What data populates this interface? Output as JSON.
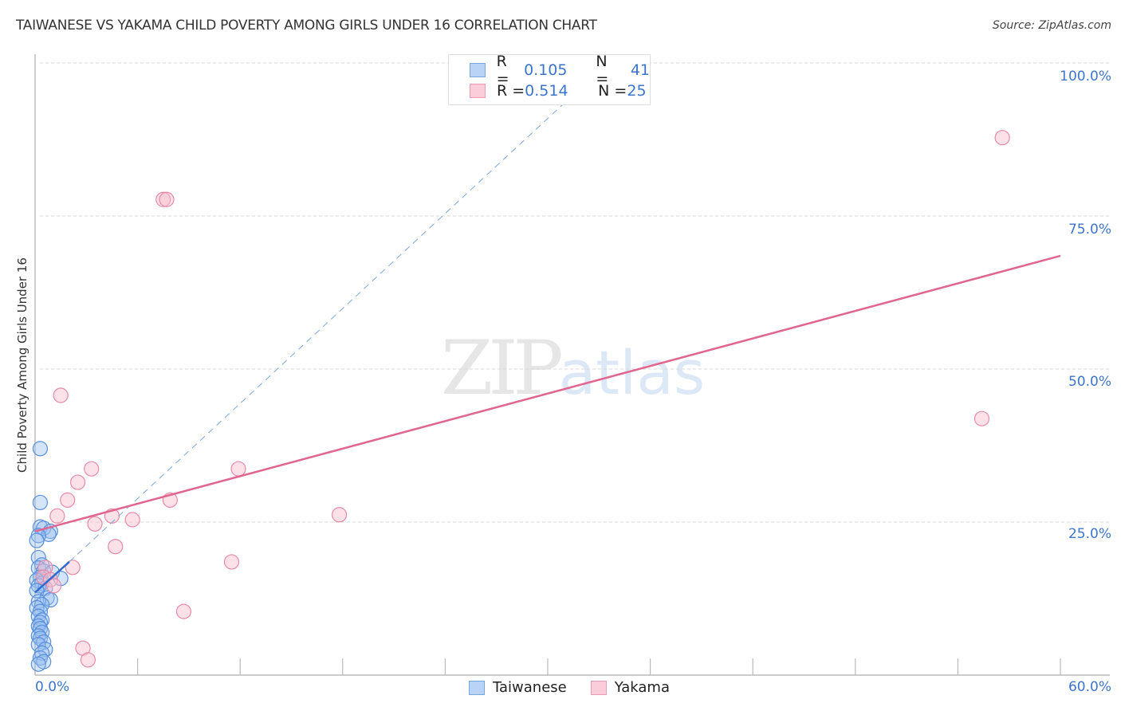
{
  "header": {
    "title": "TAIWANESE VS YAKAMA CHILD POVERTY AMONG GIRLS UNDER 16 CORRELATION CHART",
    "source": "Source: ZipAtlas.com"
  },
  "watermark": {
    "zip": "ZIP",
    "atlas": "atlas"
  },
  "legend": {
    "rows": [
      {
        "r_label": "R = ",
        "r_value": "0.105",
        "n_label": "N = ",
        "n_value": "41",
        "color": "#a8c8f0"
      },
      {
        "r_label": "R = ",
        "r_value": "0.514",
        "n_label": "N = ",
        "n_value": "25",
        "color": "#f8bccd"
      }
    ]
  },
  "bottom_legend": [
    {
      "label": "Taiwanese",
      "color": "#a8c8f0"
    },
    {
      "label": "Yakama",
      "color": "#f8bccd"
    }
  ],
  "axes": {
    "y_label": "Child Poverty Among Girls Under 16",
    "y_ticks": [
      "100.0%",
      "75.0%",
      "50.0%",
      "25.0%"
    ],
    "x_ticks": [
      "0.0%",
      "60.0%"
    ]
  },
  "chart_data": {
    "type": "scatter",
    "title": "TAIWANESE VS YAKAMA CHILD POVERTY AMONG GIRLS UNDER 16 CORRELATION CHART",
    "xlabel": "",
    "ylabel": "Child Poverty Among Girls Under 16",
    "xlim": [
      0,
      60
    ],
    "ylim": [
      0,
      100
    ],
    "x_tick_labels": [
      "0.0%",
      "60.0%"
    ],
    "y_tick_labels": [
      "25.0%",
      "50.0%",
      "75.0%",
      "100.0%"
    ],
    "grid": "horizontal dashed",
    "legend_position": "top-center",
    "series": [
      {
        "name": "Taiwanese",
        "color": "#5a8fdc",
        "R": 0.105,
        "N": 41,
        "points": [
          [
            0.3,
            37.0
          ],
          [
            0.3,
            28.2
          ],
          [
            0.3,
            24.2
          ],
          [
            0.5,
            24.0
          ],
          [
            0.9,
            23.5
          ],
          [
            0.8,
            23.0
          ],
          [
            0.2,
            22.8
          ],
          [
            0.1,
            22.0
          ],
          [
            0.2,
            19.2
          ],
          [
            0.4,
            18.0
          ],
          [
            0.2,
            17.5
          ],
          [
            0.5,
            17.0
          ],
          [
            1.0,
            16.8
          ],
          [
            1.5,
            15.8
          ],
          [
            0.3,
            16.0
          ],
          [
            0.1,
            15.5
          ],
          [
            0.4,
            15.0
          ],
          [
            0.2,
            14.6
          ],
          [
            0.6,
            14.2
          ],
          [
            0.1,
            13.8
          ],
          [
            0.7,
            12.6
          ],
          [
            0.9,
            12.3
          ],
          [
            0.2,
            12.0
          ],
          [
            0.4,
            11.5
          ],
          [
            0.1,
            11.0
          ],
          [
            0.3,
            10.4
          ],
          [
            0.2,
            9.6
          ],
          [
            0.4,
            9.0
          ],
          [
            0.3,
            8.6
          ],
          [
            0.2,
            8.0
          ],
          [
            0.3,
            7.6
          ],
          [
            0.4,
            7.0
          ],
          [
            0.2,
            6.4
          ],
          [
            0.3,
            6.0
          ],
          [
            0.5,
            5.4
          ],
          [
            0.2,
            5.0
          ],
          [
            0.6,
            4.2
          ],
          [
            0.4,
            3.6
          ],
          [
            0.3,
            2.8
          ],
          [
            0.5,
            2.2
          ],
          [
            0.2,
            1.8
          ]
        ],
        "trendline": {
          "x": [
            0,
            2.0
          ],
          "y": [
            13.5,
            18.5
          ],
          "extended_dashed_to": [
            33.0,
            100.0
          ]
        }
      },
      {
        "name": "Yakama",
        "color": "#e86d96",
        "R": 0.514,
        "N": 25,
        "points": [
          [
            56.6,
            87.8
          ],
          [
            7.5,
            77.7
          ],
          [
            7.7,
            77.7
          ],
          [
            1.5,
            45.7
          ],
          [
            55.4,
            41.9
          ],
          [
            3.3,
            33.7
          ],
          [
            11.9,
            33.7
          ],
          [
            2.5,
            31.5
          ],
          [
            1.9,
            28.6
          ],
          [
            7.9,
            28.6
          ],
          [
            1.3,
            26.0
          ],
          [
            4.5,
            26.0
          ],
          [
            5.7,
            25.4
          ],
          [
            17.8,
            26.2
          ],
          [
            3.5,
            24.7
          ],
          [
            4.7,
            21.0
          ],
          [
            11.5,
            18.5
          ],
          [
            2.2,
            17.6
          ],
          [
            0.6,
            17.6
          ],
          [
            0.5,
            16.0
          ],
          [
            0.9,
            15.6
          ],
          [
            1.1,
            14.6
          ],
          [
            8.7,
            10.4
          ],
          [
            2.8,
            4.4
          ],
          [
            3.1,
            2.5
          ]
        ],
        "trendline": {
          "x": [
            0,
            60
          ],
          "y": [
            23.5,
            68.5
          ]
        }
      }
    ]
  }
}
